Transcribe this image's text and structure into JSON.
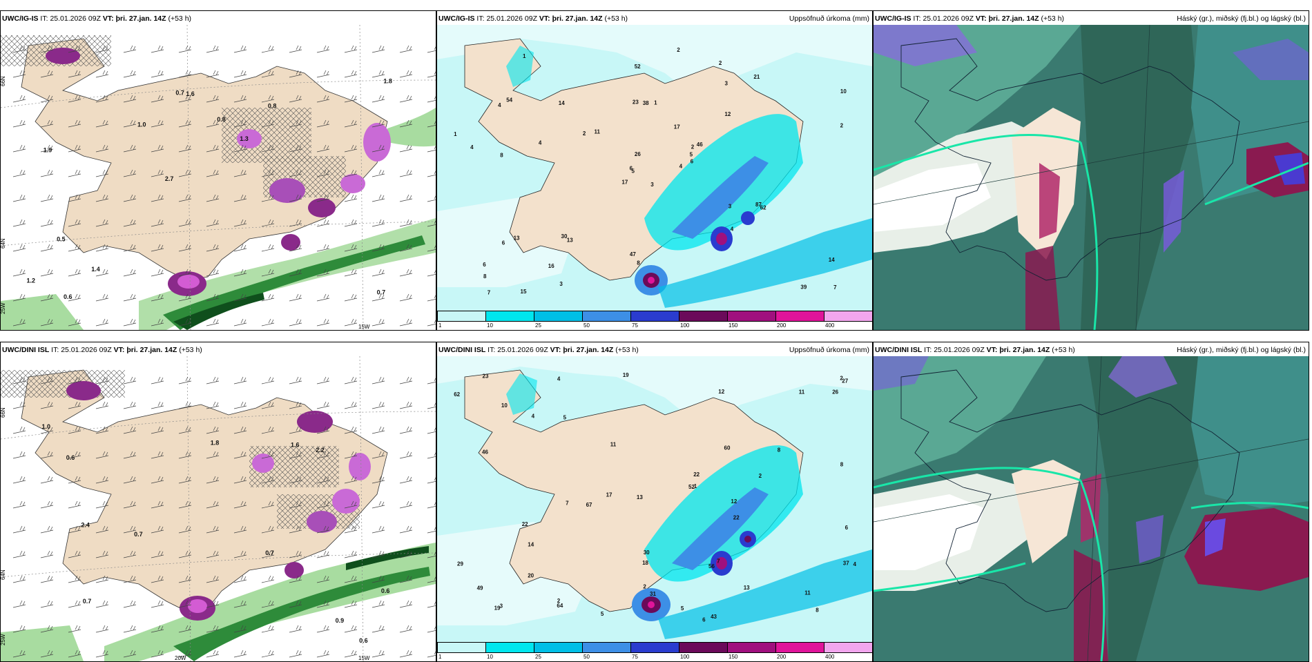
{
  "panels": [
    {
      "model": "UWC/IG-IS",
      "it_label": "IT:",
      "it": "25.01.2026 09Z",
      "vt_label": "VT:",
      "vt": "þri. 27.jan. 14Z",
      "lead": "(+53 h)",
      "title_right": ""
    },
    {
      "model": "UWC/IG-IS",
      "it_label": "IT:",
      "it": "25.01.2026 09Z",
      "vt_label": "VT:",
      "vt": "þri. 27.jan. 14Z",
      "lead": "(+53 h)",
      "title_right": "Uppsöfnuð úrkoma (mm)"
    },
    {
      "model": "UWC/IG-IS",
      "it_label": "IT:",
      "it": "25.01.2026 09Z",
      "vt_label": "VT:",
      "vt": "þri. 27.jan. 14Z",
      "lead": "(+53 h)",
      "title_right": "Háský (gr.), miðský (fj.bl.) og lágský (bl.)"
    },
    {
      "model": "UWC/DINI ISL",
      "it_label": "IT:",
      "it": "25.01.2026 09Z",
      "vt_label": "VT:",
      "vt": "þri. 27.jan. 14Z",
      "lead": "(+53 h)",
      "title_right": ""
    },
    {
      "model": "UWC/DINI ISL",
      "it_label": "IT:",
      "it": "25.01.2026 09Z",
      "vt_label": "VT:",
      "vt": "þri. 27.jan. 14Z",
      "lead": "(+53 h)",
      "title_right": "Uppsöfnuð úrkoma (mm)"
    },
    {
      "model": "UWC/DINI ISL",
      "it_label": "IT:",
      "it": "25.01.2026 09Z",
      "vt_label": "VT:",
      "vt": "þri. 27.jan. 14Z",
      "lead": "(+53 h)",
      "title_right": "Háský (gr.), miðský (fj.bl.) og lágský (bl.)"
    }
  ],
  "grid_labels": {
    "lat66": "66N",
    "lat64": "64N",
    "lon25": "25W",
    "lon20": "20W",
    "lon15": "15W"
  },
  "colorbar": {
    "ticks": [
      "1",
      "10",
      "25",
      "50",
      "75",
      "100",
      "150",
      "200",
      "400"
    ],
    "colors": [
      "#c8f7f7",
      "#00e6ee",
      "#00bfe6",
      "#3d8fe6",
      "#2a3ccf",
      "#6b0a5a",
      "#a0107e",
      "#e0149a",
      "#f2a6ee"
    ]
  },
  "left_top_values": [
    "0.7",
    "1.9",
    "1.8",
    "2.7",
    "0.8",
    "0.6",
    "0.7",
    "0.8",
    "0.5",
    "1.0",
    "1.2",
    "1.4",
    "1.6",
    "1.3"
  ],
  "left_bot_values": [
    "0.6",
    "2.4",
    "0.7",
    "1.0",
    "0.6",
    "0.6",
    "0.7",
    "0.7",
    "2.2",
    "1.8",
    "1.6",
    "0.9"
  ],
  "precip_top_values": [
    "3",
    "4",
    "5",
    "6",
    "2",
    "13",
    "2",
    "1",
    "3",
    "4",
    "1",
    "7",
    "8",
    "10",
    "17",
    "12",
    "15",
    "23",
    "17",
    "13",
    "11",
    "8",
    "16",
    "38",
    "46",
    "62",
    "54",
    "52",
    "4",
    "3",
    "2",
    "6",
    "47",
    "26",
    "14",
    "21",
    "30",
    "39",
    "14",
    "87",
    "2",
    "2",
    "4",
    "4",
    "3",
    "1",
    "5",
    "7",
    "8",
    "6",
    "6"
  ],
  "precip_bot_values": [
    "5",
    "6",
    "2",
    "13",
    "4",
    "10",
    "7",
    "8",
    "19",
    "11",
    "11",
    "31",
    "17",
    "18",
    "12",
    "52",
    "46",
    "64",
    "67",
    "62",
    "56",
    "27",
    "22",
    "19",
    "8",
    "22",
    "29",
    "14",
    "23",
    "22",
    "13",
    "43",
    "30",
    "26",
    "20",
    "12",
    "37",
    "49",
    "60",
    "11",
    "1",
    "2",
    "4",
    "3",
    "5",
    "7",
    "6",
    "5",
    "4",
    "2",
    "2",
    "8"
  ]
}
